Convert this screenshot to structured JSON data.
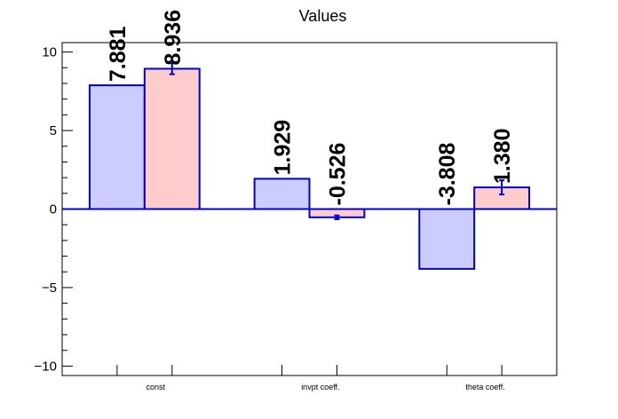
{
  "chart_data": {
    "type": "bar",
    "title": "Values",
    "xlabel": "",
    "ylabel": "",
    "ylim": [
      -10.6,
      10.6
    ],
    "yticks": [
      -10,
      -5,
      0,
      5,
      10
    ],
    "ytick_labels": [
      "−10",
      "−5",
      "0",
      "5",
      "10"
    ],
    "categories": [
      "const",
      "invpt coeff.",
      "theta coeff."
    ],
    "grid": false,
    "legend": "none",
    "series": [
      {
        "values": [
          7.881,
          1.929,
          -3.808
        ],
        "labels": [
          "7.881",
          "1.929",
          "-3.808"
        ],
        "errors": [
          0,
          0,
          0
        ],
        "fill": "#ccccff",
        "stroke": "#0000cc"
      },
      {
        "values": [
          8.936,
          -0.526,
          1.38
        ],
        "labels": [
          "8.936",
          "-0.526",
          "1.380"
        ],
        "errors": [
          0.35,
          0.12,
          0.45
        ],
        "fill": "#ffcccc",
        "stroke": "#0000cc"
      }
    ],
    "zero_line_color": "#0000cc"
  }
}
